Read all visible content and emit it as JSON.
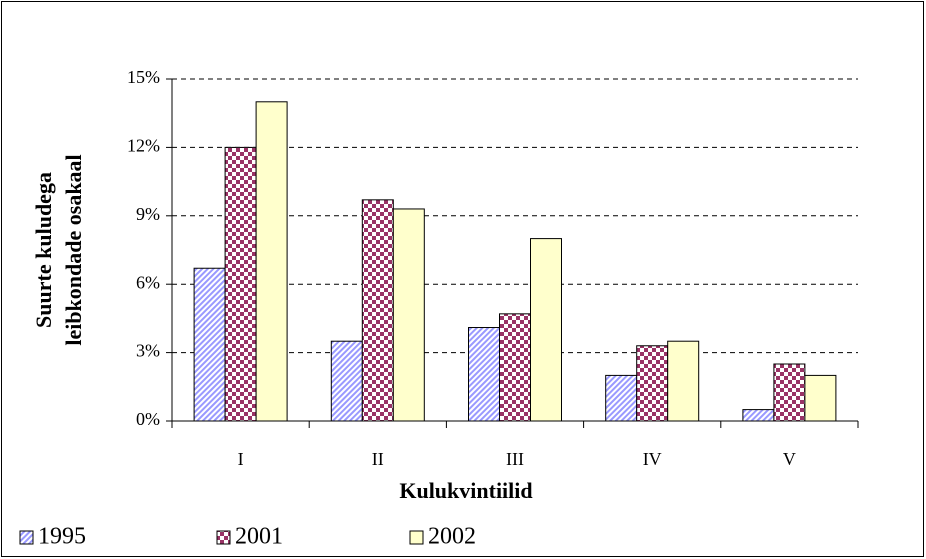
{
  "chart_data": {
    "type": "bar",
    "y_label": [
      "Suurte kuludega",
      "leibkondade osakaal"
    ],
    "x_label": "Kulukvintiilid",
    "categories": [
      "I",
      "II",
      "III",
      "IV",
      "V"
    ],
    "series": [
      {
        "name": "1995",
        "color": "#9999ff",
        "pattern": "diagonal",
        "values": [
          6.7,
          3.5,
          4.1,
          2.0,
          0.5
        ]
      },
      {
        "name": "2001",
        "color": "#993366",
        "pattern": "checker",
        "values": [
          12.0,
          9.7,
          4.7,
          3.3,
          2.5
        ]
      },
      {
        "name": "2002",
        "color": "#ffffcc",
        "pattern": "solid",
        "values": [
          14.0,
          9.3,
          8.0,
          3.5,
          2.0
        ]
      }
    ],
    "ylim": [
      0,
      15
    ],
    "yticks": [
      {
        "value": 0,
        "label": "0%"
      },
      {
        "value": 3,
        "label": "3%"
      },
      {
        "value": 6,
        "label": "6%"
      },
      {
        "value": 9,
        "label": "9%"
      },
      {
        "value": 12,
        "label": "12%"
      },
      {
        "value": 15,
        "label": "15%"
      }
    ],
    "grid": true,
    "legend": "bottom"
  }
}
